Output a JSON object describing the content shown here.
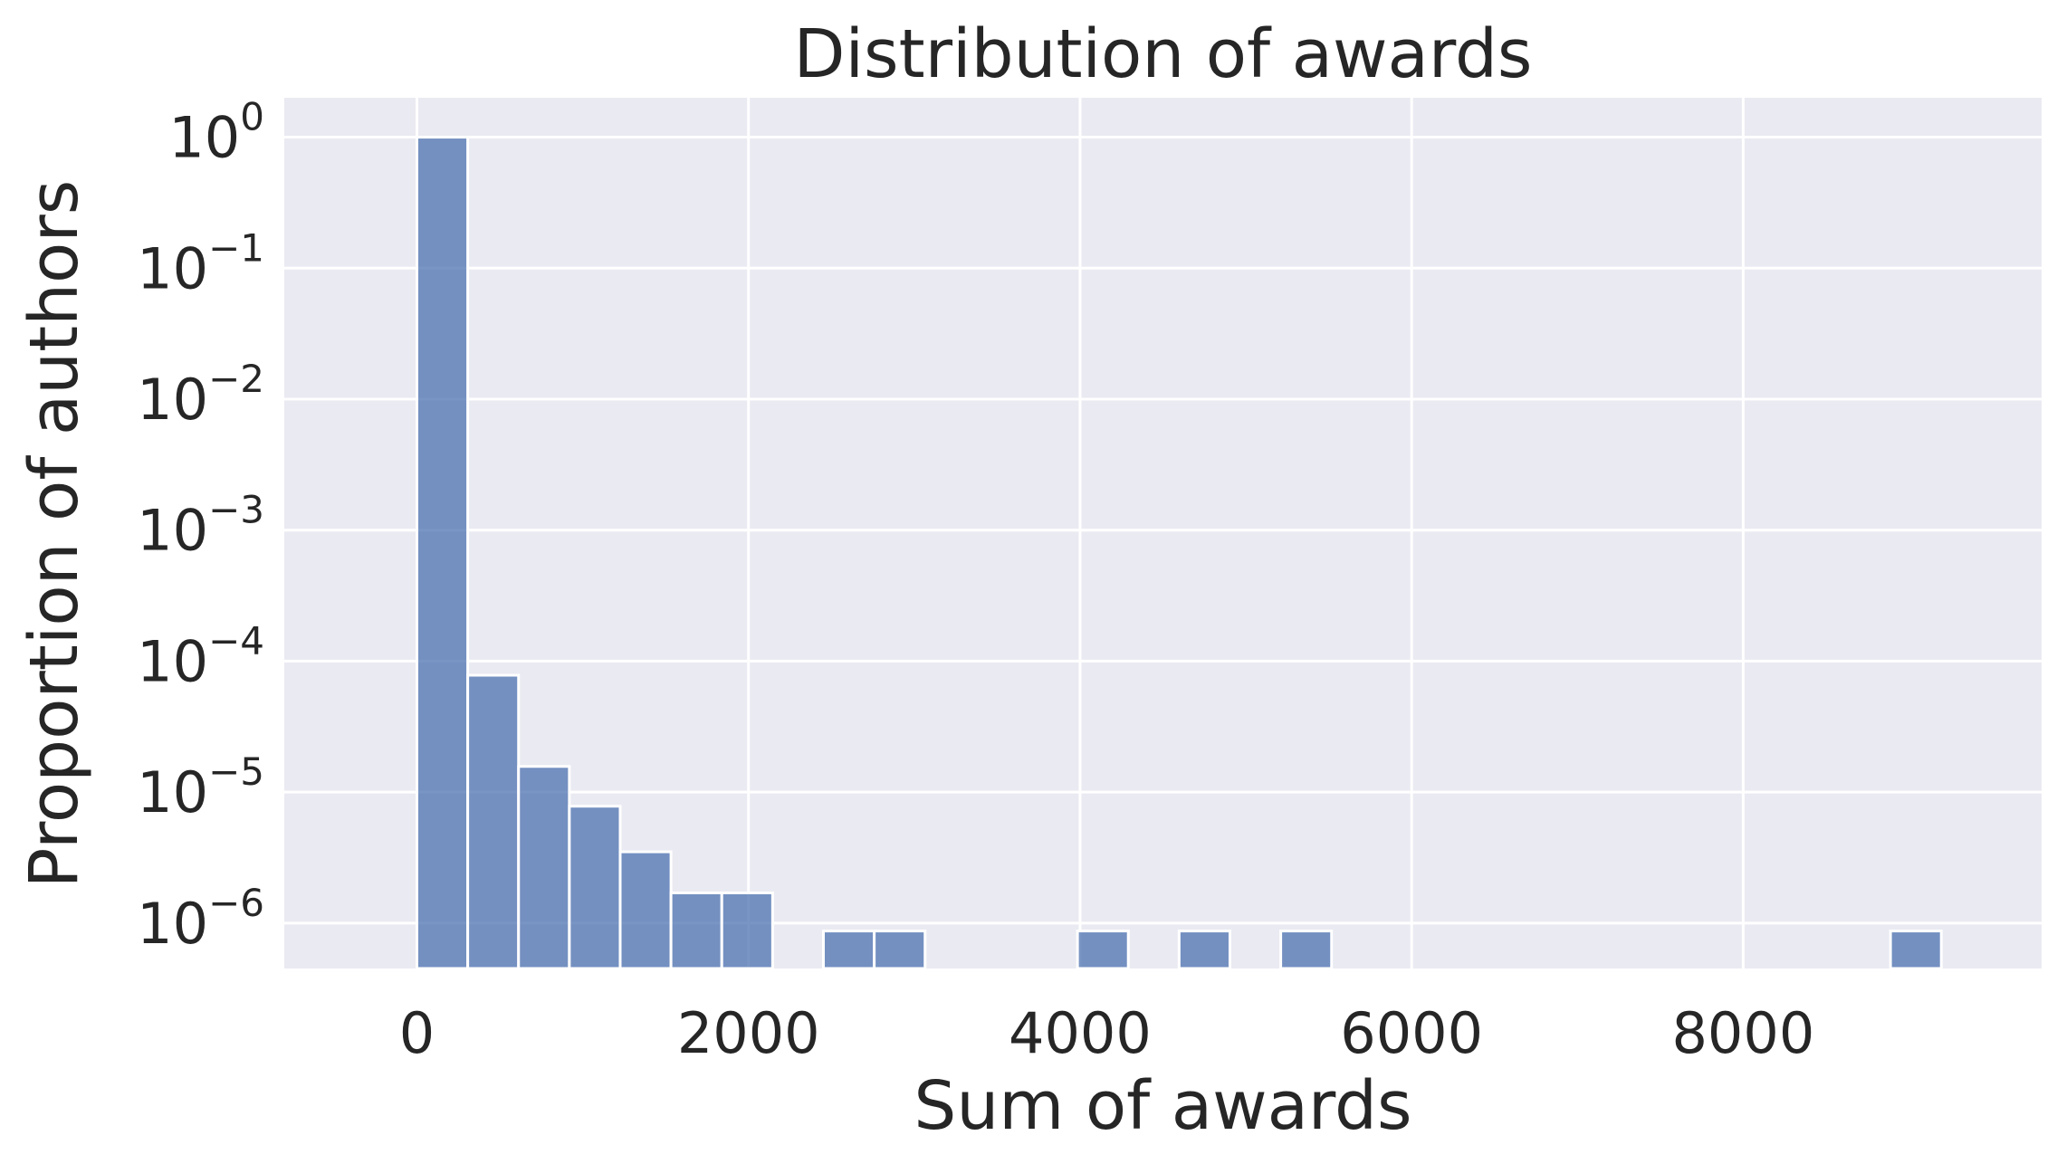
{
  "chart_data": {
    "type": "bar",
    "title": "Distribution of awards",
    "xlabel": "Sum of awards",
    "ylabel": "Proportion of authors",
    "xscale": "linear",
    "yscale": "log",
    "xlim": [
      -800,
      9800
    ],
    "ylim": [
      4.5e-07,
      2
    ],
    "grid": true,
    "legend": "none",
    "bar_color": "#4c72b0",
    "background_color": "#eaeaf2",
    "bin_width": 306.5,
    "bins": [
      {
        "x_start": 0,
        "x_end": 306.5,
        "value": 0.9999
      },
      {
        "x_start": 306.5,
        "x_end": 613,
        "value": 7.8e-05
      },
      {
        "x_start": 613,
        "x_end": 919.5,
        "value": 1.57e-05
      },
      {
        "x_start": 919.5,
        "x_end": 1226,
        "value": 7.8e-06
      },
      {
        "x_start": 1226,
        "x_end": 1532.5,
        "value": 3.5e-06
      },
      {
        "x_start": 1532.5,
        "x_end": 1839,
        "value": 1.7e-06
      },
      {
        "x_start": 1839,
        "x_end": 2145.5,
        "value": 1.7e-06
      },
      {
        "x_start": 2452,
        "x_end": 2758.5,
        "value": 8.7e-07
      },
      {
        "x_start": 2758.5,
        "x_end": 3065,
        "value": 8.7e-07
      },
      {
        "x_start": 3984.5,
        "x_end": 4291,
        "value": 8.7e-07
      },
      {
        "x_start": 4597.5,
        "x_end": 4904,
        "value": 8.7e-07
      },
      {
        "x_start": 5210.5,
        "x_end": 5517,
        "value": 8.7e-07
      },
      {
        "x_start": 8888.5,
        "x_end": 9195,
        "value": 8.7e-07
      }
    ],
    "x_ticks": [
      {
        "value": 0,
        "label": "0"
      },
      {
        "value": 2000,
        "label": "2000"
      },
      {
        "value": 4000,
        "label": "4000"
      },
      {
        "value": 6000,
        "label": "6000"
      },
      {
        "value": 8000,
        "label": "8000"
      }
    ],
    "y_ticks": [
      {
        "value": 1,
        "base": "10",
        "exp": "0"
      },
      {
        "value": 0.1,
        "base": "10",
        "exp": "−1"
      },
      {
        "value": 0.01,
        "base": "10",
        "exp": "−2"
      },
      {
        "value": 0.001,
        "base": "10",
        "exp": "−3"
      },
      {
        "value": 0.0001,
        "base": "10",
        "exp": "−4"
      },
      {
        "value": 1e-05,
        "base": "10",
        "exp": "−5"
      },
      {
        "value": 1e-06,
        "base": "10",
        "exp": "−6"
      }
    ]
  }
}
